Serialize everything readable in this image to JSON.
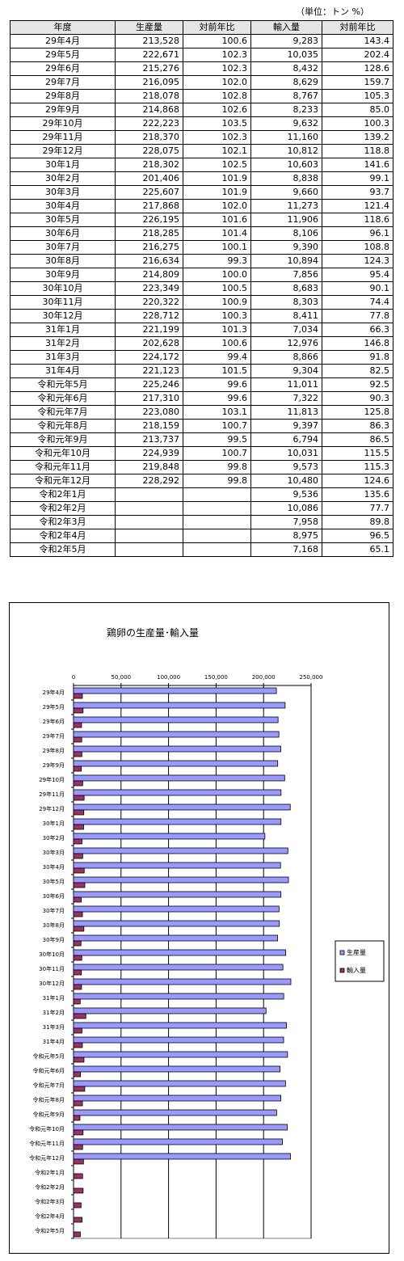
{
  "unit_note": "（単位：トン %）",
  "table": {
    "headers": [
      "年度",
      "生産量",
      "対前年比",
      "輸入量",
      "対前年比"
    ],
    "rows": [
      [
        "29年4月",
        "213,528",
        "100.6",
        "9,283",
        "143.4"
      ],
      [
        "29年5月",
        "222,671",
        "102.3",
        "10,035",
        "202.4"
      ],
      [
        "29年6月",
        "215,276",
        "102.3",
        "8,432",
        "128.6"
      ],
      [
        "29年7月",
        "216,095",
        "102.0",
        "8,629",
        "159.7"
      ],
      [
        "29年8月",
        "218,078",
        "102.8",
        "8,767",
        "105.3"
      ],
      [
        "29年9月",
        "214,868",
        "102.6",
        "8,233",
        "85.0"
      ],
      [
        "29年10月",
        "222,223",
        "103.5",
        "9,632",
        "100.3"
      ],
      [
        "29年11月",
        "218,370",
        "102.3",
        "11,160",
        "139.2"
      ],
      [
        "29年12月",
        "228,075",
        "102.1",
        "10,812",
        "118.8"
      ],
      [
        "30年1月",
        "218,302",
        "102.5",
        "10,603",
        "141.6"
      ],
      [
        "30年2月",
        "201,406",
        "101.9",
        "8,838",
        "99.1"
      ],
      [
        "30年3月",
        "225,607",
        "101.9",
        "9,660",
        "93.7"
      ],
      [
        "30年4月",
        "217,868",
        "102.0",
        "11,273",
        "121.4"
      ],
      [
        "30年5月",
        "226,195",
        "101.6",
        "11,906",
        "118.6"
      ],
      [
        "30年6月",
        "218,285",
        "101.4",
        "8,106",
        "96.1"
      ],
      [
        "30年7月",
        "216,275",
        "100.1",
        "9,390",
        "108.8"
      ],
      [
        "30年8月",
        "216,634",
        "99.3",
        "10,894",
        "124.3"
      ],
      [
        "30年9月",
        "214,809",
        "100.0",
        "7,856",
        "95.4"
      ],
      [
        "30年10月",
        "223,349",
        "100.5",
        "8,683",
        "90.1"
      ],
      [
        "30年11月",
        "220,322",
        "100.9",
        "8,303",
        "74.4"
      ],
      [
        "30年12月",
        "228,712",
        "100.3",
        "8,411",
        "77.8"
      ],
      [
        "31年1月",
        "221,199",
        "101.3",
        "7,034",
        "66.3"
      ],
      [
        "31年2月",
        "202,628",
        "100.6",
        "12,976",
        "146.8"
      ],
      [
        "31年3月",
        "224,172",
        "99.4",
        "8,866",
        "91.8"
      ],
      [
        "31年4月",
        "221,123",
        "101.5",
        "9,304",
        "82.5"
      ],
      [
        "令和元年5月",
        "225,246",
        "99.6",
        "11,011",
        "92.5"
      ],
      [
        "令和元年6月",
        "217,310",
        "99.6",
        "7,322",
        "90.3"
      ],
      [
        "令和元年7月",
        "223,080",
        "103.1",
        "11,813",
        "125.8"
      ],
      [
        "令和元年8月",
        "218,159",
        "100.7",
        "9,397",
        "86.3"
      ],
      [
        "令和元年9月",
        "213,737",
        "99.5",
        "6,794",
        "86.5"
      ],
      [
        "令和元年10月",
        "224,939",
        "100.7",
        "10,031",
        "115.5"
      ],
      [
        "令和元年11月",
        "219,848",
        "99.8",
        "9,573",
        "115.3"
      ],
      [
        "令和元年12月",
        "228,292",
        "99.8",
        "10,480",
        "124.6"
      ],
      [
        "令和2年1月",
        "",
        "",
        "9,536",
        "135.6"
      ],
      [
        "令和2年2月",
        "",
        "",
        "10,086",
        "77.7"
      ],
      [
        "令和2年3月",
        "",
        "",
        "7,958",
        "89.8"
      ],
      [
        "令和2年4月",
        "",
        "",
        "8,975",
        "96.5"
      ],
      [
        "令和2年5月",
        "",
        "",
        "7,168",
        "65.1"
      ]
    ]
  },
  "chart_data": {
    "type": "bar",
    "orientation": "horizontal",
    "title": "鶏卵の生産量･輸入量",
    "categories": [
      "29年4月",
      "29年5月",
      "29年6月",
      "29年7月",
      "29年8月",
      "29年9月",
      "29年10月",
      "29年11月",
      "29年12月",
      "30年1月",
      "30年2月",
      "30年3月",
      "30年4月",
      "30年5月",
      "30年6月",
      "30年7月",
      "30年8月",
      "30年9月",
      "30年10月",
      "30年11月",
      "30年12月",
      "31年1月",
      "31年2月",
      "31年3月",
      "31年4月",
      "令和元年5月",
      "令和元年6月",
      "令和元年7月",
      "令和元年8月",
      "令和元年9月",
      "令和元年10月",
      "令和元年11月",
      "令和元年12月",
      "令和2年1月",
      "令和2年2月",
      "令和2年3月",
      "令和2年4月",
      "令和2年5月"
    ],
    "series": [
      {
        "name": "生産量",
        "color": "#9999ff",
        "values": [
          213528,
          222671,
          215276,
          216095,
          218078,
          214868,
          222223,
          218370,
          228075,
          218302,
          201406,
          225607,
          217868,
          226195,
          218285,
          216275,
          216634,
          214809,
          223349,
          220322,
          228712,
          221199,
          202628,
          224172,
          221123,
          225246,
          217310,
          223080,
          218159,
          213737,
          224939,
          219848,
          228292,
          null,
          null,
          null,
          null,
          null
        ]
      },
      {
        "name": "輸入量",
        "color": "#993366",
        "values": [
          9283,
          10035,
          8432,
          8629,
          8767,
          8233,
          9632,
          11160,
          10812,
          10603,
          8838,
          9660,
          11273,
          11906,
          8106,
          9390,
          10894,
          7856,
          8683,
          8303,
          8411,
          7034,
          12976,
          8866,
          9304,
          11011,
          7322,
          11813,
          9397,
          6794,
          10031,
          9573,
          10480,
          9536,
          10086,
          7958,
          8975,
          7168
        ]
      }
    ],
    "x_ticks": [
      "0",
      "50,000",
      "100,000",
      "150,000",
      "200,000",
      "250,000"
    ],
    "xlim": [
      0,
      250000
    ],
    "xaxis_position": "top",
    "grid": true,
    "legend_position": "right"
  }
}
